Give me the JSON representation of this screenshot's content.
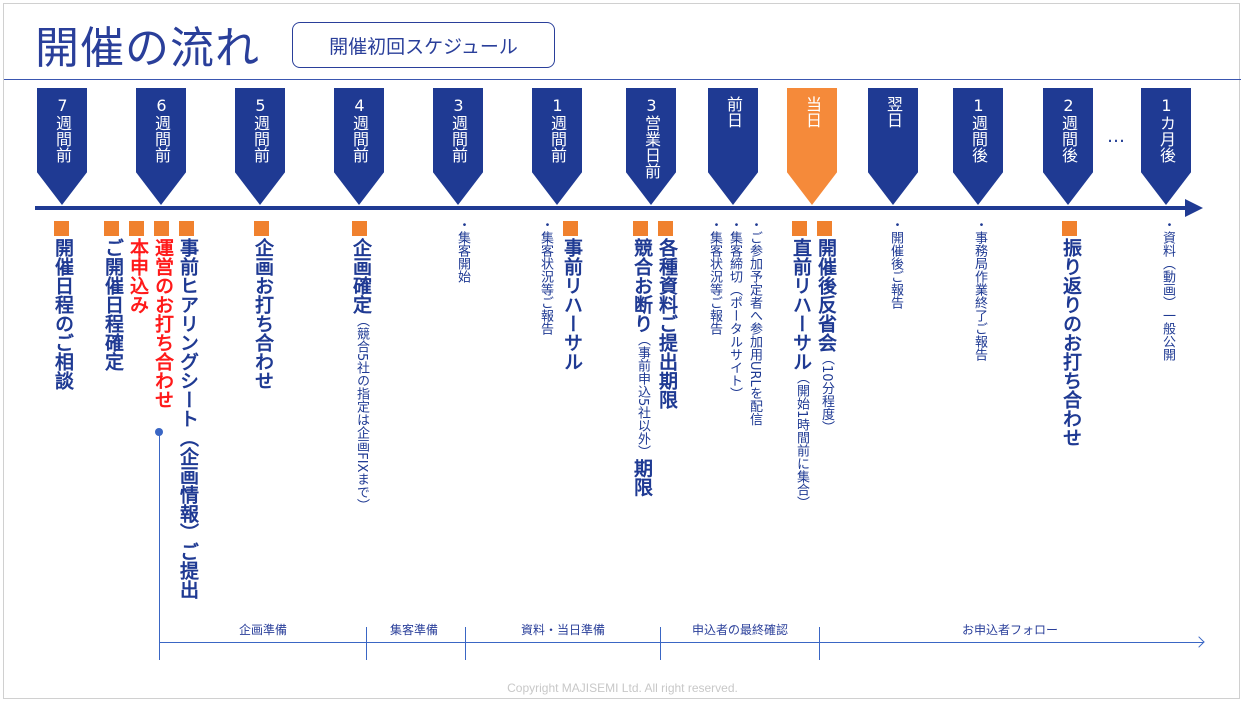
{
  "header": {
    "title": "開催の流れ",
    "badge": "開催初回スケジュール"
  },
  "colors": {
    "navy": "#1f3a93",
    "today": "#f58a3a",
    "square": "#f0812e",
    "red": "#ff1a1a"
  },
  "markers": [
    "7週間前",
    "6週間前",
    "5週間前",
    "4週間前",
    "3週間前",
    "1週間前",
    "3営業日前",
    "前日",
    "当日",
    "翌日",
    "1週間後",
    "2週間後",
    "1カ月後"
  ],
  "ellipsis": "…",
  "tasks": [
    {
      "parts": [
        {
          "t": "開催日程のご相談",
          "s": "big"
        }
      ],
      "square": true
    },
    {
      "parts": [
        {
          "t": "ご開催日程確定",
          "s": "big"
        }
      ],
      "square": true
    },
    {
      "parts": [
        {
          "t": "本申込み",
          "s": "big"
        }
      ],
      "square": true,
      "red": true
    },
    {
      "parts": [
        {
          "t": "運営のお打ち合わせ",
          "s": "big"
        }
      ],
      "square": true,
      "red": true
    },
    {
      "parts": [
        {
          "t": "事前ヒアリングシート（企画情報）ご提出",
          "s": "big"
        }
      ],
      "square": true
    },
    {
      "parts": [
        {
          "t": "企画お打ち合わせ",
          "s": "big"
        }
      ],
      "square": true
    },
    {
      "parts": [
        {
          "t": "企画確定",
          "s": "big"
        },
        {
          "t": "（競合5社の指定は企画FIXまで）",
          "s": "small"
        }
      ],
      "square": true
    },
    {
      "parts": [
        {
          "t": "・集客開始",
          "s": "small"
        }
      ]
    },
    {
      "parts": [
        {
          "t": "・集客状況等ご報告",
          "s": "small"
        }
      ]
    },
    {
      "parts": [
        {
          "t": "事前リハーサル",
          "s": "big"
        }
      ],
      "square": true
    },
    {
      "parts": [
        {
          "t": "競合お断り",
          "s": "big"
        },
        {
          "t": "（事前申込5社以外）",
          "s": "small"
        },
        {
          "t": "期限",
          "s": "big"
        }
      ],
      "square": true
    },
    {
      "parts": [
        {
          "t": "各種資料ご提出期限",
          "s": "big"
        }
      ],
      "square": true
    },
    {
      "parts": [
        {
          "t": "・集客状況等ご報告",
          "s": "small"
        }
      ]
    },
    {
      "parts": [
        {
          "t": "・集客締切（ポータルサイト）",
          "s": "small"
        }
      ]
    },
    {
      "parts": [
        {
          "t": "・ご参加予定者へ参加用URLを配信",
          "s": "small"
        }
      ]
    },
    {
      "parts": [
        {
          "t": "直前リハーサル",
          "s": "big"
        },
        {
          "t": "（開始1時間前に集合）",
          "s": "small"
        }
      ],
      "square": true
    },
    {
      "parts": [
        {
          "t": "開催後反省会",
          "s": "big"
        },
        {
          "t": "（10分程度）",
          "s": "small"
        }
      ],
      "square": true
    },
    {
      "parts": [
        {
          "t": "・開催後ご報告",
          "s": "small"
        }
      ]
    },
    {
      "parts": [
        {
          "t": "・事務局作業終了ご報告",
          "s": "small"
        }
      ]
    },
    {
      "parts": [
        {
          "t": "振り返りのお打ち合わせ",
          "s": "big"
        }
      ],
      "square": true
    },
    {
      "parts": [
        {
          "t": "・資料（動画）一般公開",
          "s": "small"
        }
      ]
    }
  ],
  "phases": [
    "企画準備",
    "集客準備",
    "資料・当日準備",
    "申込者の最終確認",
    "お申込者フォロー"
  ],
  "copyright": "Copyright MAJISEMI Ltd. All right reserved."
}
